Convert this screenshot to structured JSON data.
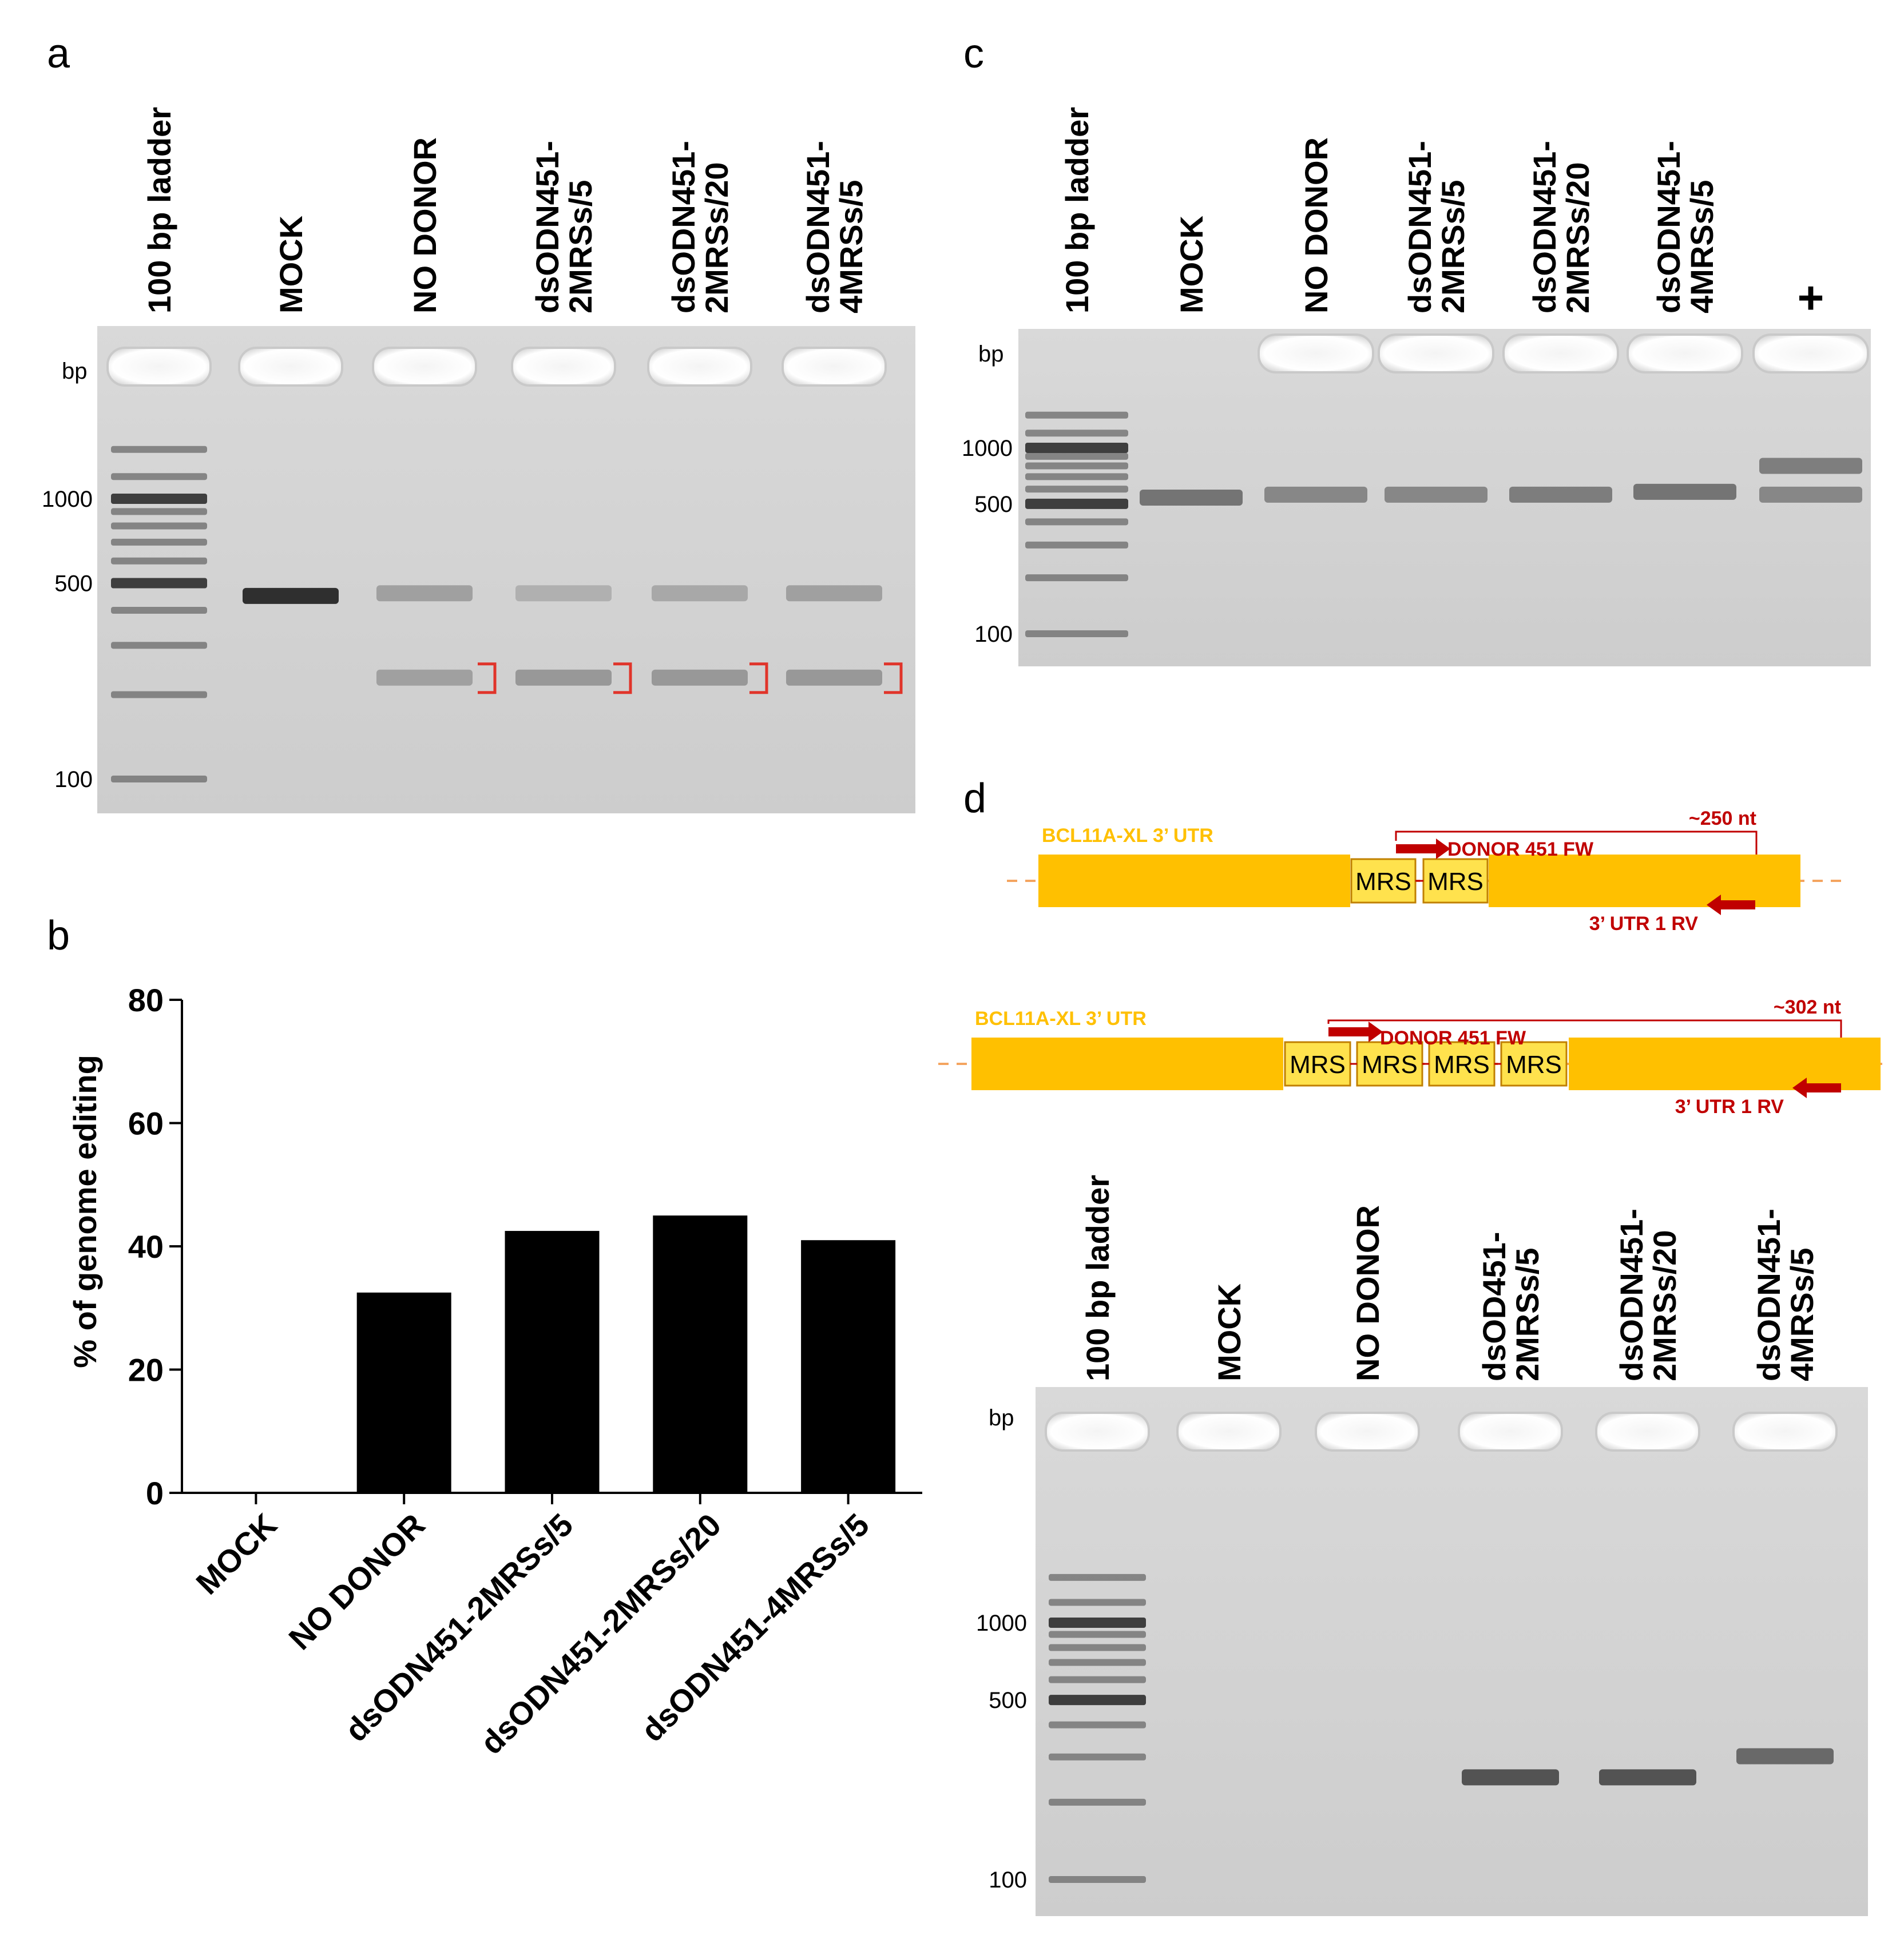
{
  "panels": {
    "a": {
      "letter": "a",
      "bp_label": "bp",
      "lanes": [
        "100 bp ladder",
        "MOCK",
        "NO DONOR",
        "dsODN451-\n2MRSs/5",
        "dsODN451-\n2MRSs/20",
        "dsODN451-\n4MRSs/5"
      ],
      "ladder_marks": [
        {
          "label": "1000",
          "bp": 1000
        },
        {
          "label": "500",
          "bp": 500
        },
        {
          "label": "100",
          "bp": 100
        }
      ],
      "lane_bands": [
        [],
        [
          {
            "bp": 450,
            "strength": 0.9
          }
        ],
        [
          {
            "bp": 460,
            "strength": 0.35
          },
          {
            "bp": 230,
            "strength": 0.35
          }
        ],
        [
          {
            "bp": 460,
            "strength": 0.25
          },
          {
            "bp": 230,
            "strength": 0.4
          }
        ],
        [
          {
            "bp": 460,
            "strength": 0.3
          },
          {
            "bp": 230,
            "strength": 0.4
          }
        ],
        [
          {
            "bp": 460,
            "strength": 0.35
          },
          {
            "bp": 230,
            "strength": 0.4
          }
        ]
      ],
      "bracket_color": "#e0342a"
    },
    "b": {
      "letter": "b",
      "chart_data": {
        "type": "bar",
        "categories": [
          "MOCK",
          "NO DONOR",
          "dsODN451-2MRSs/5",
          "dsODN451-2MRSs/20",
          "dsODN451-4MRSs/5"
        ],
        "values": [
          0,
          32.5,
          42.5,
          45,
          41
        ],
        "title": "",
        "xlabel": "",
        "ylabel": "% of genome editing",
        "ylim": [
          0,
          80
        ],
        "yticks": [
          0,
          20,
          40,
          60,
          80
        ],
        "bar_color": "#000000",
        "grid": false
      }
    },
    "c": {
      "letter": "c",
      "bp_label": "bp",
      "lanes": [
        "100 bp ladder",
        "MOCK",
        "NO DONOR",
        "dsODN451-\n2MRSs/5",
        "dsODN451-\n2MRSs/20",
        "dsODN451-\n4MRSs/5",
        "+"
      ],
      "ladder_marks": [
        {
          "label": "1000",
          "bp": 1000
        },
        {
          "label": "500",
          "bp": 500
        },
        {
          "label": "100",
          "bp": 100
        }
      ],
      "lane_bands": [
        [],
        [
          {
            "bp": 540,
            "strength": 0.6
          }
        ],
        [
          {
            "bp": 560,
            "strength": 0.5
          }
        ],
        [
          {
            "bp": 560,
            "strength": 0.5
          }
        ],
        [
          {
            "bp": 560,
            "strength": 0.55
          }
        ],
        [
          {
            "bp": 580,
            "strength": 0.6
          }
        ],
        [
          {
            "bp": 800,
            "strength": 0.55
          },
          {
            "bp": 560,
            "strength": 0.5
          }
        ]
      ]
    },
    "d": {
      "letter": "d",
      "diagram_top": {
        "utr_label": "BCL11A-XL 3’ UTR",
        "mrs_blocks": [
          "MRS",
          "MRS"
        ],
        "fw_label": "DONOR 451 FW",
        "rv_label": "3’ UTR 1 RV",
        "size_label": "~250 nt"
      },
      "diagram_bottom": {
        "utr_label": "BCL11A-XL 3’ UTR",
        "mrs_blocks": [
          "MRS",
          "MRS",
          "MRS",
          "MRS"
        ],
        "fw_label": "DONOR 451 FW",
        "rv_label": "3’ UTR 1 RV",
        "size_label": "~302 nt"
      },
      "colors": {
        "utr": "#ffc000",
        "mrs": "#ffe24d",
        "primer": "#c00000",
        "utr_text": "#ffc000"
      },
      "gel": {
        "bp_label": "bp",
        "lanes": [
          "100 bp ladder",
          "MOCK",
          "NO DONOR",
          "dsOD451-\n2MRSs/5",
          "dsODN451-\n2MRSs/20",
          "dsODN451-\n4MRSs/5"
        ],
        "ladder_marks": [
          {
            "label": "1000",
            "bp": 1000
          },
          {
            "label": "500",
            "bp": 500
          },
          {
            "label": "100",
            "bp": 100
          }
        ],
        "lane_bands": [
          [],
          [],
          [],
          [
            {
              "bp": 250,
              "strength": 0.75
            }
          ],
          [
            {
              "bp": 250,
              "strength": 0.75
            }
          ],
          [
            {
              "bp": 302,
              "strength": 0.65
            }
          ]
        ]
      }
    }
  }
}
